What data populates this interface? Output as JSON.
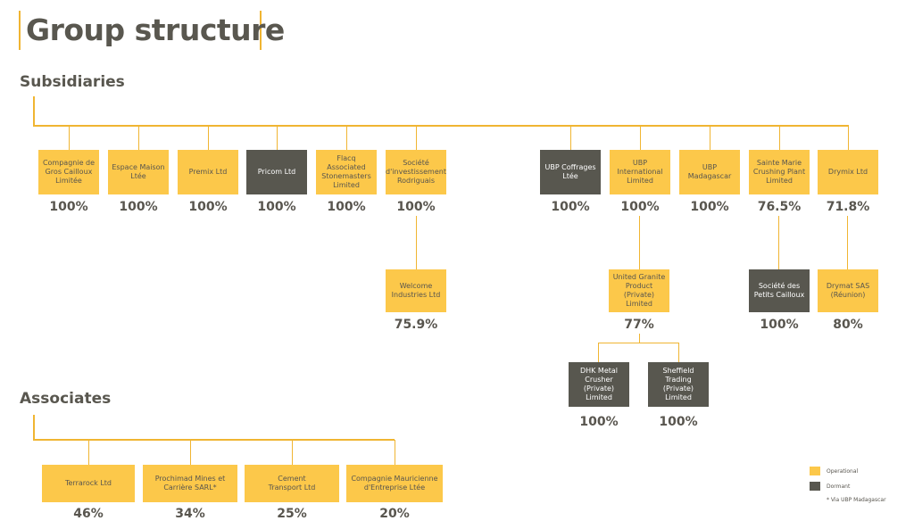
{
  "title": "Group structure",
  "sections": {
    "subsidiaries": "Subsidiaries",
    "associates": "Associates"
  },
  "colors": {
    "operational": "#fcc84a",
    "dormant": "#58574f",
    "line": "#f0b532"
  },
  "subsidiaries": [
    {
      "name": "Compagnie de\nGros Cailloux\nLimitée",
      "pct": "100%",
      "status": "operational"
    },
    {
      "name": "Espace Maison\nLtée",
      "pct": "100%",
      "status": "operational"
    },
    {
      "name": "Premix Ltd",
      "pct": "100%",
      "status": "operational"
    },
    {
      "name": "Pricom Ltd",
      "pct": "100%",
      "status": "dormant"
    },
    {
      "name": "Flacq\nAssociated\nStonemasters\nLimited",
      "pct": "100%",
      "status": "operational"
    },
    {
      "name": "Société\nd'investissement\nRodriguais",
      "pct": "100%",
      "status": "operational"
    },
    {
      "name": "UBP Coffrages\nLtée",
      "pct": "100%",
      "status": "dormant"
    },
    {
      "name": "UBP\nInternational\nLimited",
      "pct": "100%",
      "status": "operational"
    },
    {
      "name": "UBP\nMadagascar",
      "pct": "100%",
      "status": "operational"
    },
    {
      "name": "Sainte Marie\nCrushing Plant\nLimited",
      "pct": "76.5%",
      "status": "operational"
    },
    {
      "name": "Drymix Ltd",
      "pct": "71.8%",
      "status": "operational"
    }
  ],
  "second_level": [
    {
      "name": "Welcome\nIndustries Ltd",
      "pct": "75.9%",
      "status": "operational"
    },
    {
      "name": "United Granite\nProduct\n(Private) Limited",
      "pct": "77%",
      "status": "operational"
    },
    {
      "name": "Société des\nPetits Cailloux",
      "pct": "100%",
      "status": "dormant"
    },
    {
      "name": "Drymat SAS\n(Réunion)",
      "pct": "80%",
      "status": "operational"
    }
  ],
  "third_level": [
    {
      "name": "DHK Metal\nCrusher\n(Private) Limited",
      "pct": "100%",
      "status": "dormant"
    },
    {
      "name": "Sheffield\nTrading (Private)\nLimited",
      "pct": "100%",
      "status": "dormant"
    }
  ],
  "associates": [
    {
      "name": "Terrarock Ltd",
      "pct": "46%",
      "status": "operational"
    },
    {
      "name": "Prochimad Mines et\nCarrière SARL*",
      "pct": "34%",
      "status": "operational"
    },
    {
      "name": "Cement\nTransport Ltd",
      "pct": "25%",
      "status": "operational"
    },
    {
      "name": "Compagnie Mauricienne\nd'Entreprise Ltée",
      "pct": "20%",
      "status": "operational"
    }
  ],
  "legend": {
    "operational": "Operational",
    "dormant": "Dormant",
    "footnote": "* Via UBP Madagascar"
  }
}
